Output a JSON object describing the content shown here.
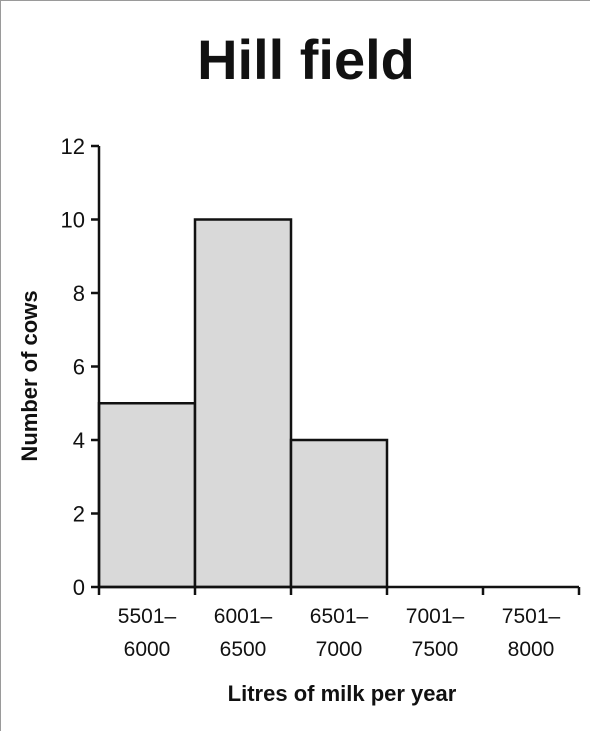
{
  "chart_data": {
    "type": "bar",
    "title": "Hill field",
    "xlabel": "Litres of milk per year",
    "ylabel": "Number of cows",
    "categories": [
      [
        "5501–",
        "6000"
      ],
      [
        "6001–",
        "6500"
      ],
      [
        "6501–",
        "7000"
      ],
      [
        "7001–",
        "7500"
      ],
      [
        "7501–",
        "8000"
      ]
    ],
    "values": [
      5,
      10,
      4,
      0,
      0
    ],
    "ylim": [
      0,
      12
    ],
    "yticks": [
      "0",
      "2",
      "4",
      "6",
      "8",
      "10",
      "12"
    ],
    "grid": false,
    "bar_color": "#d9d9d9",
    "edge_color": "#111111"
  }
}
